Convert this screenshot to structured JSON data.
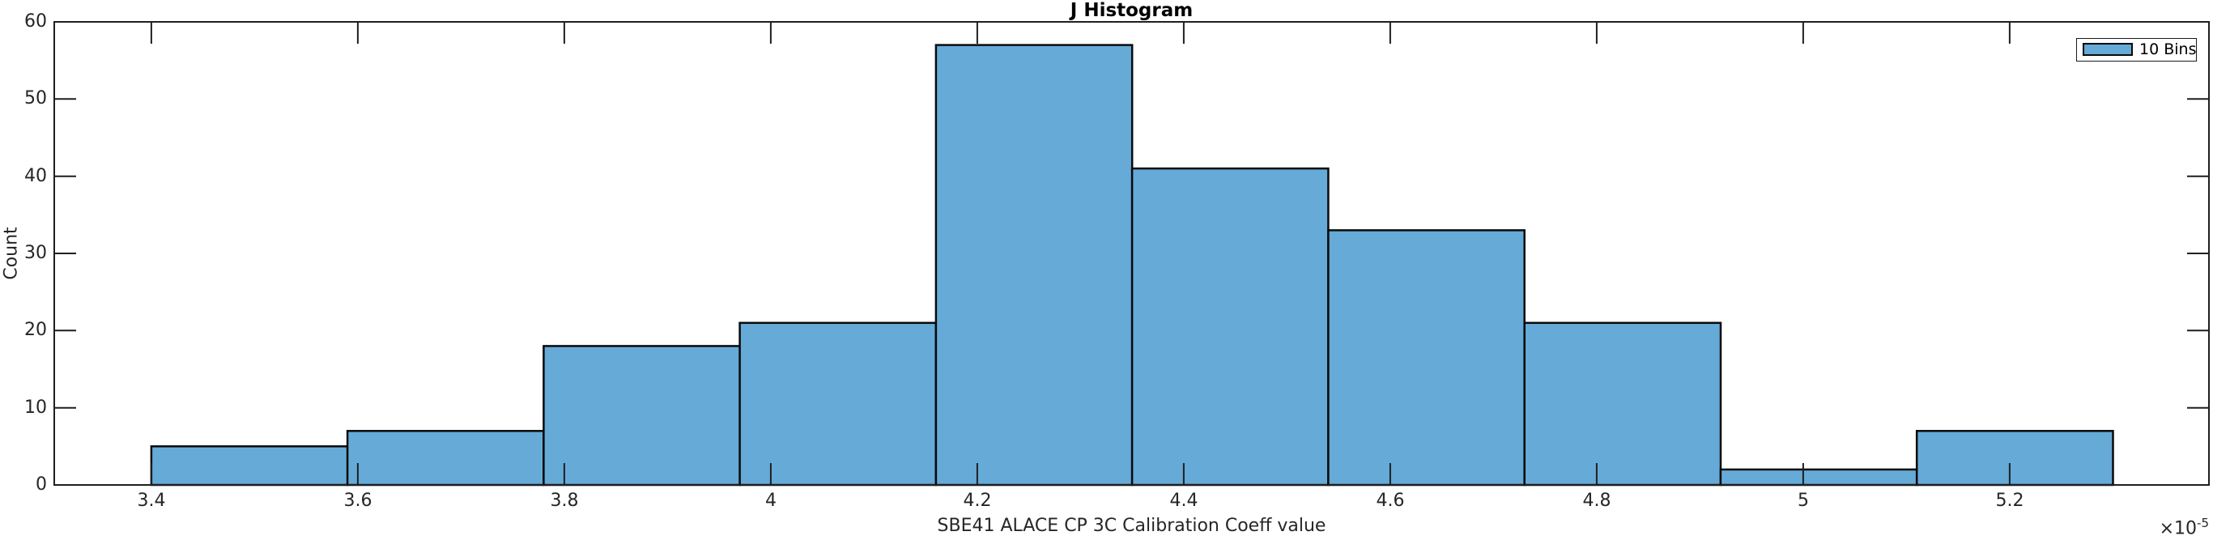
{
  "figure": {
    "title": "J Histogram",
    "xlabel": "SBE41 ALACE CP 3C Calibration Coeff value",
    "ylabel": "Count",
    "x_offset_base": "×10",
    "x_offset_exponent": "-5"
  },
  "legend": {
    "label": "10 Bins"
  },
  "chart_data": {
    "type": "bar",
    "subtype": "histogram",
    "title": "J Histogram",
    "xlabel": "SBE41 ALACE CP 3C Calibration Coeff value",
    "ylabel": "Count",
    "x_unit_scale": "1e-5",
    "bin_edges": [
      3.4,
      3.59,
      3.78,
      3.97,
      4.16,
      4.35,
      4.54,
      4.73,
      4.92,
      5.11,
      5.3
    ],
    "counts": [
      5,
      7,
      18,
      21,
      57,
      41,
      33,
      21,
      2,
      7
    ],
    "total_count": 212,
    "xtick_values": [
      3.4,
      3.6,
      3.8,
      4.0,
      4.2,
      4.4,
      4.6,
      4.8,
      5.0,
      5.2
    ],
    "xtick_labels": [
      "3.4",
      "3.6",
      "3.8",
      "4",
      "4.2",
      "4.4",
      "4.6",
      "4.8",
      "5",
      "5.2"
    ],
    "ytick_values": [
      0,
      10,
      20,
      30,
      40,
      50,
      60
    ],
    "ytick_labels": [
      "0",
      "10",
      "20",
      "30",
      "40",
      "50",
      "60"
    ],
    "xlim": [
      3.306,
      5.393
    ],
    "ylim": [
      0,
      60
    ],
    "grid": false,
    "tick_direction": "in",
    "box": true,
    "legend": {
      "label": "10 Bins",
      "position": "top-right"
    },
    "bar_color": "#66aad7",
    "bar_edge_color": "#0a0a0a",
    "axis_color": "#1f1f1f",
    "text_color": "#262626"
  }
}
